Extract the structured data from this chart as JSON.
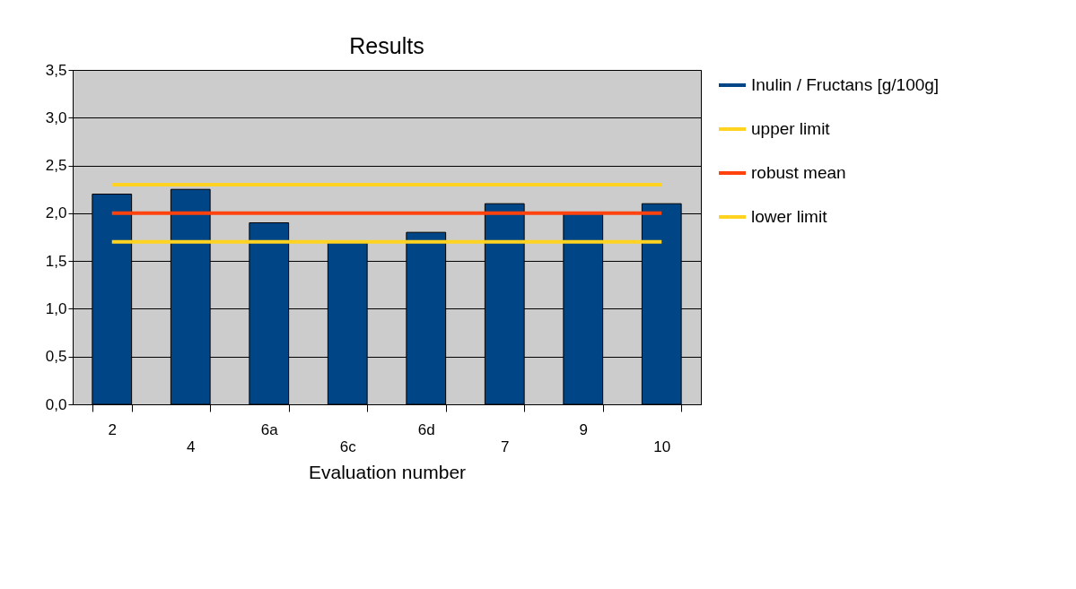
{
  "chart_data": {
    "type": "bar",
    "title": "Results",
    "xlabel": "Evaluation number",
    "categories": [
      "2",
      "4",
      "6a",
      "6c",
      "6d",
      "7",
      "9",
      "10"
    ],
    "series": [
      {
        "name": "Inulin / Fructans [g/100g]",
        "color": "#004586",
        "values": [
          2.2,
          2.25,
          1.9,
          1.7,
          1.8,
          2.1,
          2.0,
          2.1
        ]
      },
      {
        "name": "upper limit",
        "type": "line",
        "color": "#ffd320",
        "values": [
          2.3,
          2.3,
          2.3,
          2.3,
          2.3,
          2.3,
          2.3,
          2.3
        ]
      },
      {
        "name": "robust mean",
        "type": "line",
        "color": "#ff420e",
        "values": [
          2.0,
          2.0,
          2.0,
          2.0,
          2.0,
          2.0,
          2.0,
          2.0
        ]
      },
      {
        "name": "lower limit",
        "type": "line",
        "color": "#ffd320",
        "values": [
          1.7,
          1.7,
          1.7,
          1.7,
          1.7,
          1.7,
          1.7,
          1.7
        ]
      }
    ],
    "ylim": [
      0,
      3.5
    ],
    "yticks": [
      {
        "value": 0,
        "label": "0,0"
      },
      {
        "value": 0.5,
        "label": "0,5"
      },
      {
        "value": 1,
        "label": "1,0"
      },
      {
        "value": 1.5,
        "label": "1,5"
      },
      {
        "value": 2,
        "label": "2,0"
      },
      {
        "value": 2.5,
        "label": "2,5"
      },
      {
        "value": 3,
        "label": "3,0"
      },
      {
        "value": 3.5,
        "label": "3,5"
      }
    ],
    "grid": "y",
    "legend": "right"
  }
}
